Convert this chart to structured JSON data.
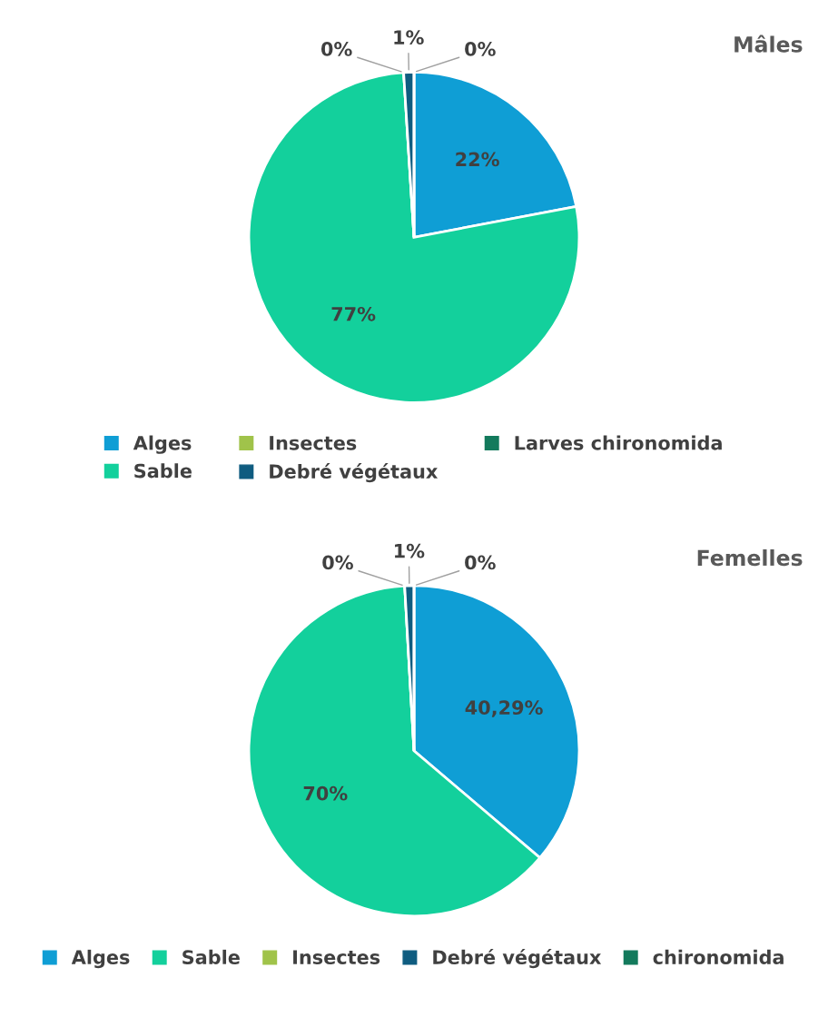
{
  "chart_data": [
    {
      "type": "pie",
      "title": "Mâles",
      "categories": [
        "Alges",
        "Sable",
        "Insectes",
        "Debré végétaux",
        "Larves chironomida"
      ],
      "values": [
        22,
        77,
        0,
        1,
        0
      ],
      "colors": [
        "#0f9ed5",
        "#13d09c",
        "#a0c34a",
        "#0f5c80",
        "#137a5c"
      ],
      "value_labels": [
        "22%",
        "77%",
        "0%",
        "1%",
        "0%"
      ],
      "legend": "bottom"
    },
    {
      "type": "pie",
      "title": "Femelles",
      "categories": [
        "Alges",
        "Sable",
        "Insectes",
        "Debré végétaux",
        "chironomida"
      ],
      "values": [
        40.29,
        70,
        0,
        1,
        0
      ],
      "colors": [
        "#0f9ed5",
        "#13d09c",
        "#a0c34a",
        "#0f5c80",
        "#137a5c"
      ],
      "value_labels": [
        "40,29%",
        "70%",
        "0%",
        "1%",
        "0%"
      ],
      "legend": "bottom"
    }
  ]
}
